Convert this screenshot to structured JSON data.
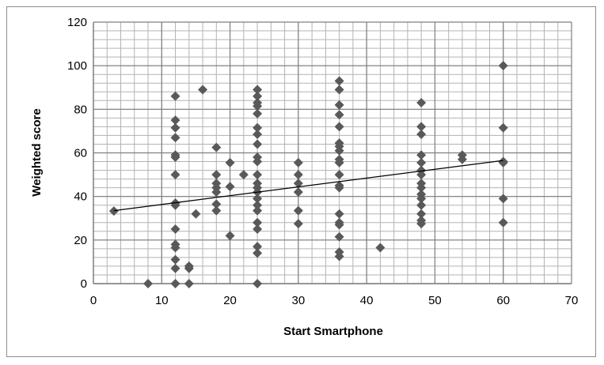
{
  "chart_data": {
    "type": "scatter",
    "xlabel": "Start Smartphone",
    "ylabel": "Weighted score",
    "xlim": [
      0,
      70
    ],
    "ylim": [
      0,
      120
    ],
    "x_ticks": [
      0,
      10,
      20,
      30,
      40,
      50,
      60,
      70
    ],
    "y_ticks": [
      0,
      20,
      40,
      60,
      80,
      100,
      120
    ],
    "grid": {
      "major": true,
      "minor": true,
      "x_minor_step": 2,
      "y_minor_step": 4
    },
    "marker": "diamond",
    "marker_color": "#595959",
    "trendline": {
      "type": "linear",
      "from": [
        3,
        33.5
      ],
      "to": [
        60,
        56.5
      ],
      "color": "#000000"
    },
    "series": [
      {
        "points": [
          [
            3,
            33.3
          ],
          [
            8,
            0
          ],
          [
            12,
            86
          ],
          [
            12,
            75
          ],
          [
            12,
            71.5
          ],
          [
            12,
            67
          ],
          [
            12,
            59
          ],
          [
            12,
            58
          ],
          [
            12,
            50
          ],
          [
            12,
            37
          ],
          [
            12,
            36
          ],
          [
            12,
            25
          ],
          [
            12,
            18
          ],
          [
            12,
            16.5
          ],
          [
            12,
            11
          ],
          [
            12,
            7
          ],
          [
            12,
            0
          ],
          [
            14,
            8
          ],
          [
            14,
            7
          ],
          [
            14,
            0
          ],
          [
            15,
            32
          ],
          [
            16,
            89
          ],
          [
            18,
            62.5
          ],
          [
            18,
            50
          ],
          [
            18,
            46
          ],
          [
            18,
            44
          ],
          [
            18,
            42
          ],
          [
            18,
            36.5
          ],
          [
            18,
            33.5
          ],
          [
            20,
            55.5
          ],
          [
            20,
            44.5
          ],
          [
            20,
            22
          ],
          [
            22,
            50
          ],
          [
            24,
            89
          ],
          [
            24,
            86
          ],
          [
            24,
            83
          ],
          [
            24,
            81.5
          ],
          [
            24,
            78
          ],
          [
            24,
            71.5
          ],
          [
            24,
            68.5
          ],
          [
            24,
            64
          ],
          [
            24,
            58
          ],
          [
            24,
            56
          ],
          [
            24,
            50
          ],
          [
            24,
            46
          ],
          [
            24,
            44
          ],
          [
            24,
            42
          ],
          [
            24,
            39
          ],
          [
            24,
            36
          ],
          [
            24,
            33.5
          ],
          [
            24,
            28
          ],
          [
            24,
            25
          ],
          [
            24,
            17
          ],
          [
            24,
            14
          ],
          [
            24,
            0
          ],
          [
            30,
            55.5
          ],
          [
            30,
            50
          ],
          [
            30,
            46
          ],
          [
            30,
            42
          ],
          [
            30,
            33.5
          ],
          [
            30,
            27.5
          ],
          [
            36,
            93
          ],
          [
            36,
            89
          ],
          [
            36,
            82
          ],
          [
            36,
            77.5
          ],
          [
            36,
            72
          ],
          [
            36,
            64.5
          ],
          [
            36,
            63
          ],
          [
            36,
            61
          ],
          [
            36,
            57
          ],
          [
            36,
            55.5
          ],
          [
            36,
            50
          ],
          [
            36,
            45
          ],
          [
            36,
            44
          ],
          [
            36,
            32
          ],
          [
            36,
            28
          ],
          [
            36,
            27
          ],
          [
            36,
            21.5
          ],
          [
            36,
            14.5
          ],
          [
            36,
            12.5
          ],
          [
            42,
            16.5
          ],
          [
            48,
            83
          ],
          [
            48,
            72
          ],
          [
            48,
            68.5
          ],
          [
            48,
            59
          ],
          [
            48,
            55.5
          ],
          [
            48,
            52
          ],
          [
            48,
            50
          ],
          [
            48,
            46
          ],
          [
            48,
            44
          ],
          [
            48,
            41
          ],
          [
            48,
            39
          ],
          [
            48,
            36
          ],
          [
            48,
            32
          ],
          [
            48,
            29
          ],
          [
            48,
            27.5
          ],
          [
            54,
            59
          ],
          [
            54,
            57
          ],
          [
            60,
            100
          ],
          [
            60,
            71.5
          ],
          [
            60,
            56
          ],
          [
            60,
            55.5
          ],
          [
            60,
            39
          ],
          [
            60,
            28
          ]
        ]
      }
    ]
  }
}
